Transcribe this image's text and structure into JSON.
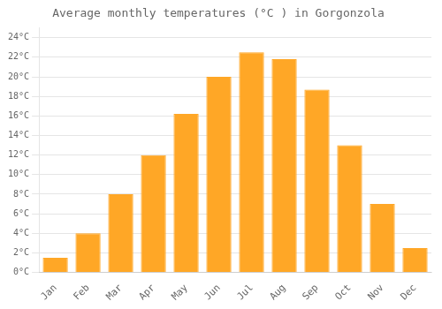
{
  "chart_data": {
    "type": "bar",
    "title": "Average monthly temperatures (°C ) in Gorgonzola",
    "categories": [
      "Jan",
      "Feb",
      "Mar",
      "Apr",
      "May",
      "Jun",
      "Jul",
      "Aug",
      "Sep",
      "Oct",
      "Nov",
      "Dec"
    ],
    "values": [
      1.5,
      4.0,
      8.0,
      12.0,
      16.2,
      20.0,
      22.5,
      21.8,
      18.7,
      13.0,
      7.0,
      2.5
    ],
    "color": "#FFA726",
    "ylim": [
      0,
      25
    ],
    "yticks": [
      {
        "value": 0,
        "label": "0°C"
      },
      {
        "value": 2,
        "label": "2°C"
      },
      {
        "value": 4,
        "label": "4°C"
      },
      {
        "value": 6,
        "label": "6°C"
      },
      {
        "value": 8,
        "label": "8°C"
      },
      {
        "value": 10,
        "label": "10°C"
      },
      {
        "value": 12,
        "label": "12°C"
      },
      {
        "value": 14,
        "label": "14°C"
      },
      {
        "value": 16,
        "label": "16°C"
      },
      {
        "value": 18,
        "label": "18°C"
      },
      {
        "value": 20,
        "label": "20°C"
      },
      {
        "value": 22,
        "label": "22°C"
      },
      {
        "value": 24,
        "label": "24°C"
      }
    ],
    "grid": true
  }
}
